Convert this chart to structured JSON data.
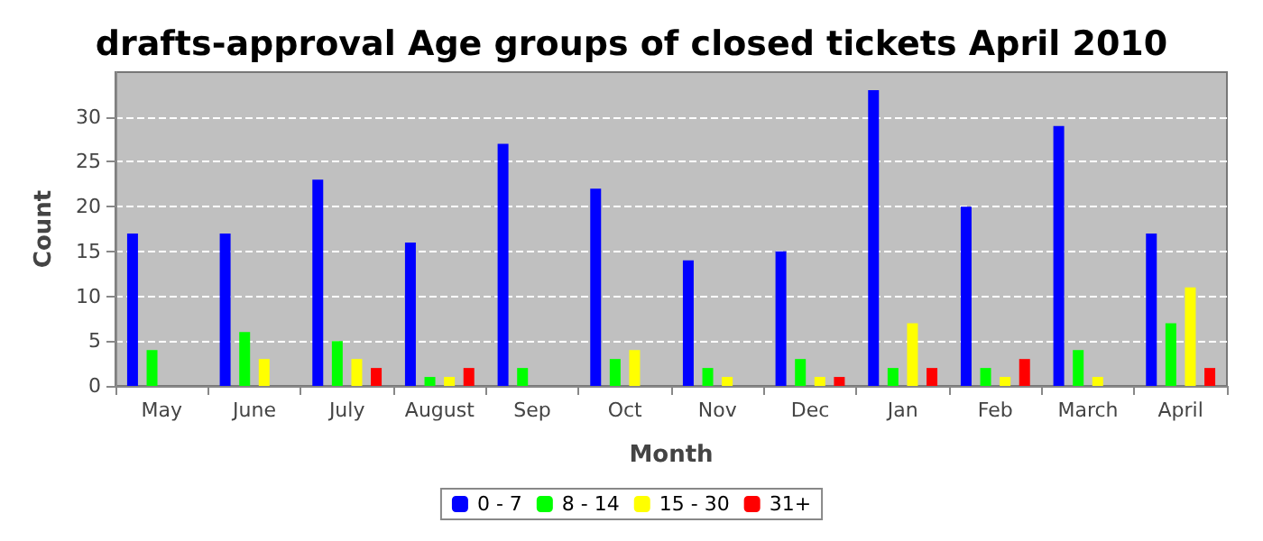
{
  "chart_data": {
    "type": "bar",
    "title": "drafts-approval Age groups of closed tickets April 2010",
    "xlabel": "Month",
    "ylabel": "Count",
    "categories": [
      "May",
      "June",
      "July",
      "August",
      "Sep",
      "Oct",
      "Nov",
      "Dec",
      "Jan",
      "Feb",
      "March",
      "April"
    ],
    "series": [
      {
        "name": "0 - 7",
        "color": "#0000ff",
        "values": [
          17,
          17,
          23,
          16,
          27,
          22,
          14,
          15,
          33,
          20,
          29,
          17
        ]
      },
      {
        "name": "8 - 14",
        "color": "#00ff00",
        "values": [
          4,
          6,
          5,
          1,
          2,
          3,
          2,
          3,
          2,
          2,
          4,
          7
        ]
      },
      {
        "name": "15 - 30",
        "color": "#ffff00",
        "values": [
          null,
          3,
          3,
          1,
          null,
          4,
          1,
          1,
          7,
          1,
          1,
          11
        ]
      },
      {
        "name": "31+",
        "color": "#ff0000",
        "values": [
          null,
          null,
          2,
          2,
          null,
          null,
          null,
          1,
          2,
          3,
          null,
          2
        ]
      }
    ],
    "ylim": [
      0,
      35
    ],
    "yticks": [
      0,
      5,
      10,
      15,
      20,
      25,
      30
    ],
    "grid": "y",
    "legend": "bottom"
  }
}
